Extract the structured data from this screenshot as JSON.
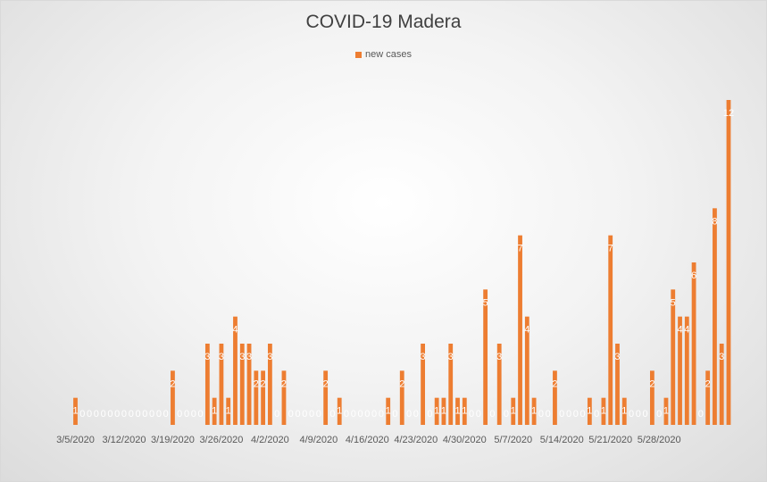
{
  "chart_data": {
    "type": "bar",
    "title": "COVID-19 Madera",
    "legend": "top",
    "grid": false,
    "start_date": "3/5/2020",
    "x_tick_labels": [
      "3/5/2020",
      "3/12/2020",
      "3/19/2020",
      "3/26/2020",
      "4/2/2020",
      "4/9/2020",
      "4/16/2020",
      "4/23/2020",
      "4/30/2020",
      "5/7/2020",
      "5/14/2020",
      "5/21/2020",
      "5/28/2020"
    ],
    "series": [
      {
        "name": "new cases",
        "color": "#ed7d31",
        "values": [
          1,
          0,
          0,
          0,
          0,
          0,
          0,
          0,
          0,
          0,
          0,
          0,
          0,
          0,
          2,
          0,
          0,
          0,
          0,
          3,
          1,
          3,
          1,
          4,
          3,
          3,
          2,
          2,
          3,
          0,
          2,
          0,
          0,
          0,
          0,
          0,
          2,
          0,
          1,
          0,
          0,
          0,
          0,
          0,
          0,
          1,
          0,
          2,
          0,
          0,
          3,
          0,
          1,
          1,
          3,
          1,
          1,
          0,
          0,
          5,
          0,
          3,
          0,
          1,
          7,
          4,
          1,
          0,
          0,
          2,
          0,
          0,
          0,
          0,
          1,
          0,
          1,
          7,
          3,
          1,
          0,
          0,
          0,
          2,
          0,
          1,
          5,
          4,
          4,
          6,
          0,
          2,
          8,
          3,
          12
        ]
      }
    ]
  }
}
